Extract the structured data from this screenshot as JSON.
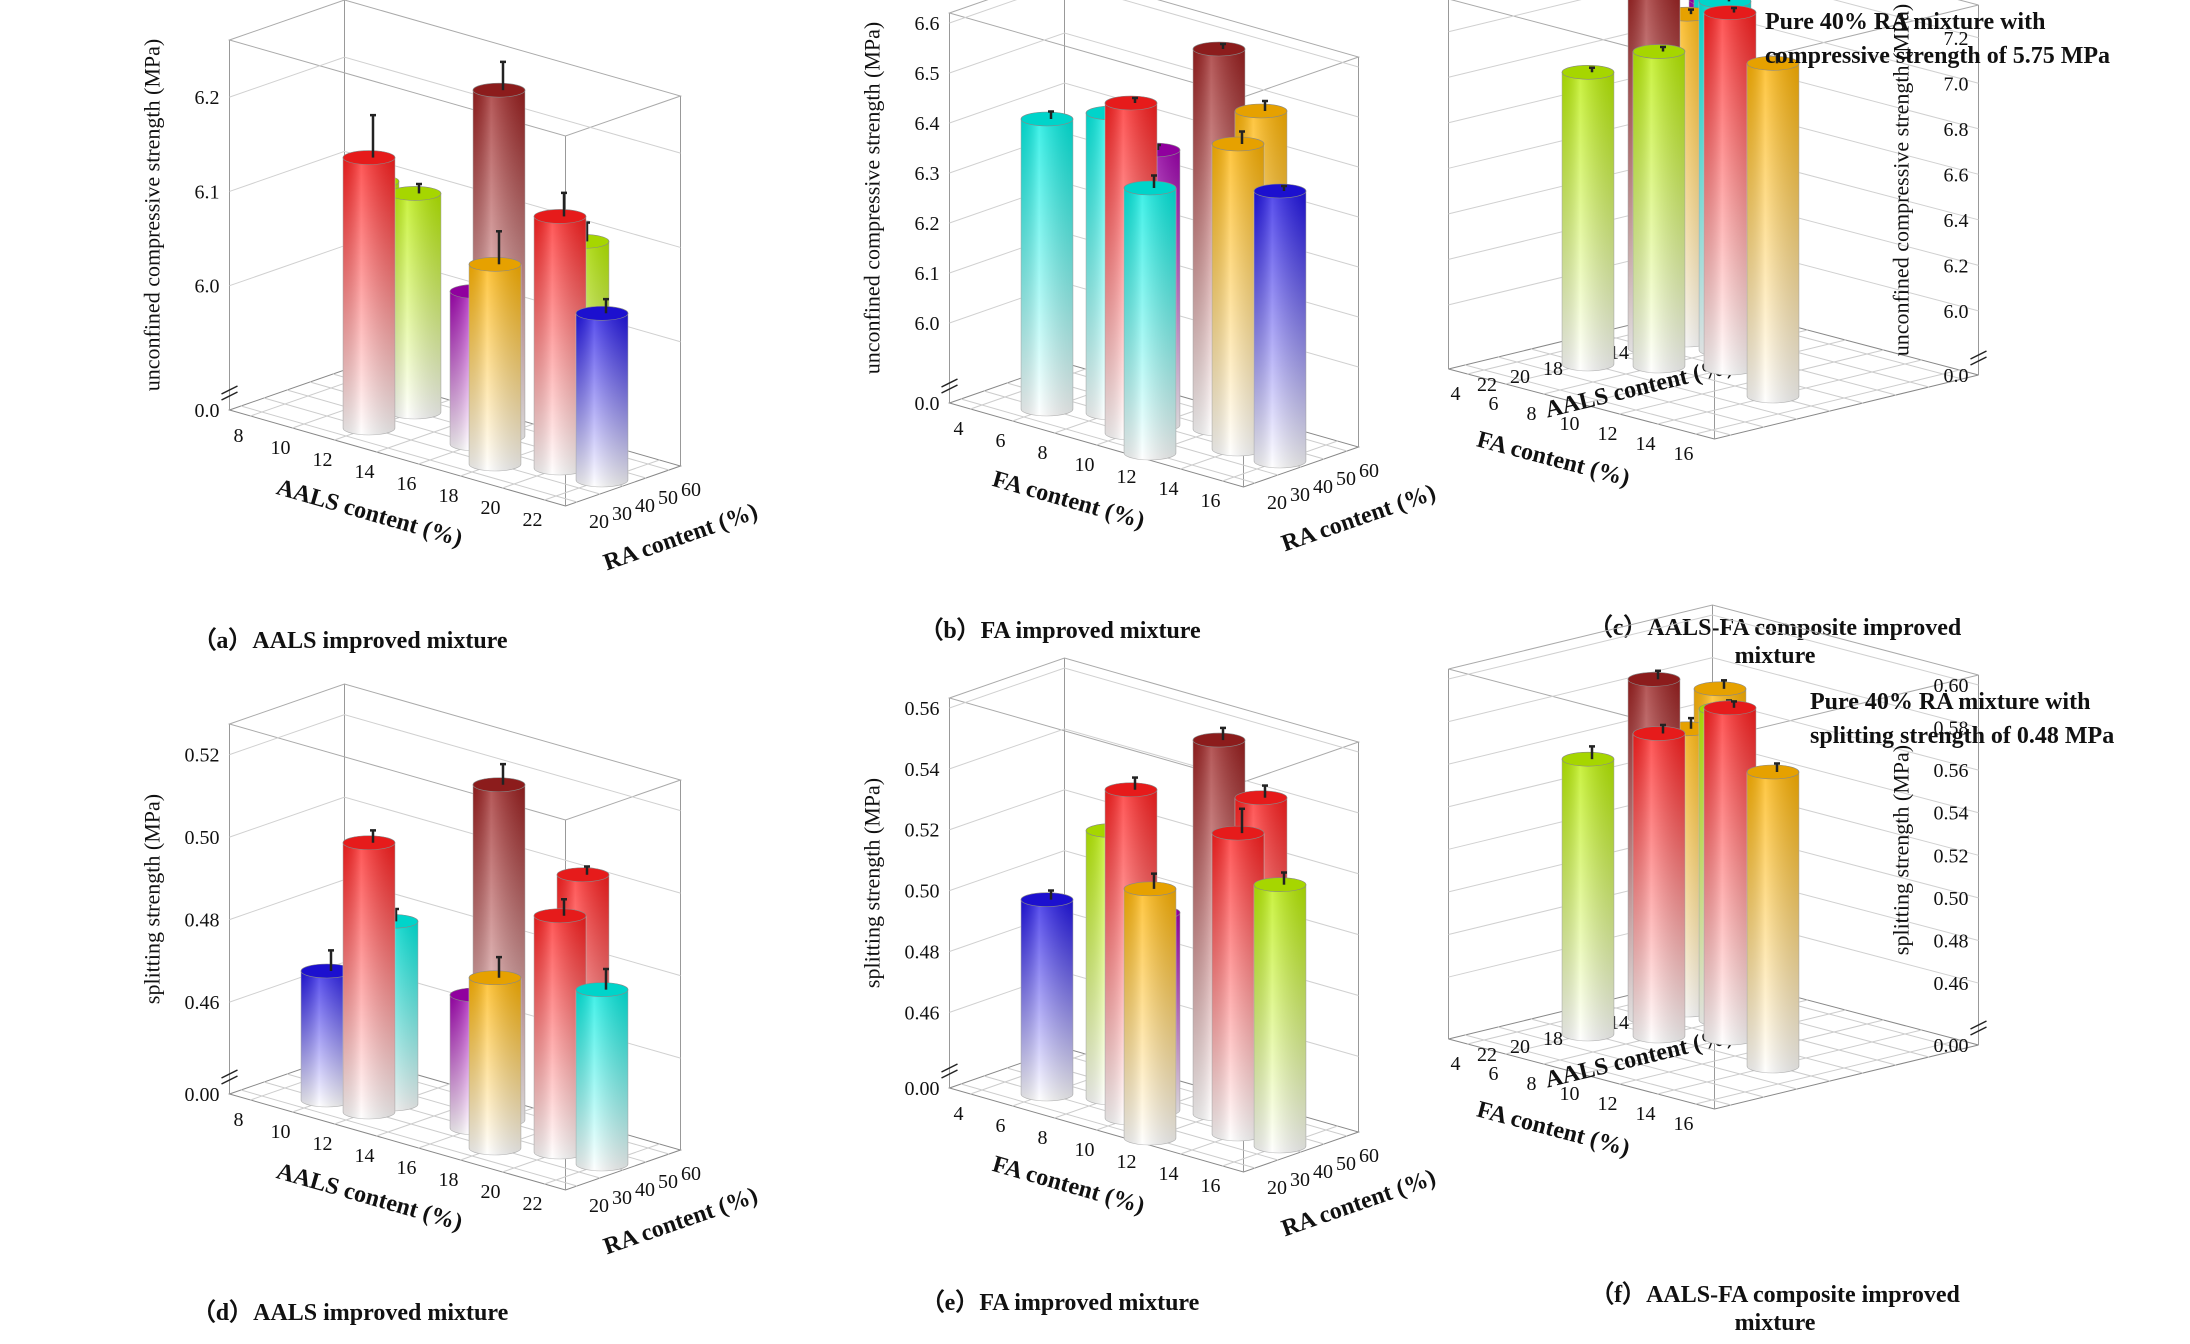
{
  "colors": {
    "dark_red": "#9c1f1f",
    "red": "#ff1e1e",
    "orange": "#ffb300",
    "lime": "#b8ee00",
    "cyan": "#00ece0",
    "purple": "#a000b0",
    "blue": "#1f12e6",
    "bottom": "#ffffff"
  },
  "notes": {
    "c": "Pure 40% RA mixture with compressive strength of 5.75 MPa",
    "f": "Pure 40% RA mixture with splitting strength of 0.48 MPa"
  },
  "chart_data": [
    {
      "id": "a",
      "type": "bar3d",
      "caption": "（a）AALS improved mixture",
      "xlabel": "AALS content (%)",
      "ylabel": "RA content (%)",
      "zlabel": "unconfined compressive strength (MPa)",
      "x_ticks": [
        "8",
        "10",
        "12",
        "14",
        "16",
        "18",
        "20",
        "22"
      ],
      "y_ticks": [
        "20",
        "30",
        "40",
        "50",
        "60"
      ],
      "z_ticks": [
        "0.0",
        "6.0",
        "6.1",
        "6.2"
      ],
      "z_range": [
        5.9,
        6.25
      ],
      "axis_break": true,
      "bars": [
        {
          "x": "10",
          "y": "50",
          "value": 6.1,
          "error": 0.015,
          "color": "lime"
        },
        {
          "x": "12",
          "y": "50",
          "value": 6.1,
          "error": 0.01,
          "color": "lime"
        },
        {
          "x": "12",
          "y": "30",
          "value": 6.155,
          "error": 0.045,
          "color": "red"
        },
        {
          "x": "16",
          "y": "40",
          "value": 6.03,
          "error": 0.01,
          "color": "purple"
        },
        {
          "x": "16",
          "y": "50",
          "value": 6.235,
          "error": 0.03,
          "color": "dark_red"
        },
        {
          "x": "20",
          "y": "50",
          "value": 6.1,
          "error": 0.02,
          "color": "lime"
        },
        {
          "x": "18",
          "y": "30",
          "value": 6.08,
          "error": 0.035,
          "color": "orange"
        },
        {
          "x": "20",
          "y": "40",
          "value": 6.135,
          "error": 0.025,
          "color": "red"
        },
        {
          "x": "22",
          "y": "40",
          "value": 6.045,
          "error": 0.015,
          "color": "blue"
        }
      ]
    },
    {
      "id": "b",
      "type": "bar3d",
      "caption": "（b）FA improved mixture",
      "xlabel": "FA content (%)",
      "ylabel": "RA content (%)",
      "zlabel": "unconfined compressive strength (MPa)",
      "x_ticks": [
        "4",
        "6",
        "8",
        "10",
        "12",
        "14",
        "16"
      ],
      "y_ticks": [
        "20",
        "30",
        "40",
        "50",
        "60"
      ],
      "z_ticks": [
        "0.0",
        "6.0",
        "6.1",
        "6.2",
        "6.3",
        "6.4",
        "6.5",
        "6.6"
      ],
      "z_range": [
        5.9,
        6.6
      ],
      "axis_break": true,
      "bars": [
        {
          "x": "6",
          "y": "30",
          "value": 6.42,
          "error": 0.015,
          "color": "cyan"
        },
        {
          "x": "8",
          "y": "40",
          "value": 6.44,
          "error": 0.01,
          "color": "cyan"
        },
        {
          "x": "10",
          "y": "40",
          "value": 6.39,
          "error": 0.01,
          "color": "purple"
        },
        {
          "x": "10",
          "y": "30",
          "value": 6.5,
          "error": 0.01,
          "color": "red"
        },
        {
          "x": "12",
          "y": "50",
          "value": 6.6,
          "error": 0.01,
          "color": "dark_red"
        },
        {
          "x": "14",
          "y": "50",
          "value": 6.5,
          "error": 0.02,
          "color": "orange"
        },
        {
          "x": "12",
          "y": "20",
          "value": 6.37,
          "error": 0.025,
          "color": "cyan"
        },
        {
          "x": "14",
          "y": "40",
          "value": 6.45,
          "error": 0.025,
          "color": "orange"
        },
        {
          "x": "16",
          "y": "40",
          "value": 6.38,
          "error": 0.01,
          "color": "blue"
        }
      ]
    },
    {
      "id": "c",
      "type": "bar3d",
      "caption": "（c）AALS-FA composite improved mixture",
      "xlabel": "FA content (%)",
      "ylabel": "AALS content (%)",
      "zlabel": "unconfined compressive strength (MPa)",
      "x_ticks": [
        "16",
        "14",
        "12",
        "10",
        "8",
        "6",
        "4"
      ],
      "y_ticks": [
        "22",
        "20",
        "18",
        "16",
        "14",
        "12",
        "10",
        "8"
      ],
      "z_ticks": [
        "0.0",
        "6.0",
        "6.2",
        "6.4",
        "6.6",
        "6.8",
        "7.0",
        "7.2"
      ],
      "z_range": [
        5.85,
        7.3
      ],
      "axis_break": true,
      "bars": [
        {
          "x": "14",
          "y": "16",
          "value": 7.18,
          "error": 0.04,
          "color": "orange"
        },
        {
          "x": "10",
          "y": "14",
          "value": 7.28,
          "error": 0.02,
          "color": "red"
        },
        {
          "x": "8",
          "y": "16",
          "value": 7.1,
          "error": 0.02,
          "color": "lime"
        },
        {
          "x": "8",
          "y": "12",
          "value": 7.25,
          "error": 0.02,
          "color": "cyan"
        },
        {
          "x": "6",
          "y": "14",
          "value": 7.3,
          "error": 0.02,
          "color": "dark_red"
        },
        {
          "x": "6",
          "y": "18",
          "value": 7.0,
          "error": 0.02,
          "color": "lime"
        },
        {
          "x": "6",
          "y": "10",
          "value": 7.2,
          "error": 0.02,
          "color": "cyan"
        },
        {
          "x": "6",
          "y": "12",
          "value": 7.15,
          "error": 0.02,
          "color": "orange"
        },
        {
          "x": "4",
          "y": "8",
          "value": 7.1,
          "error": 0.02,
          "color": "purple"
        }
      ]
    },
    {
      "id": "d",
      "type": "bar3d",
      "caption": "（d）AALS improved mixture",
      "xlabel": "AALS content (%)",
      "ylabel": "RA content (%)",
      "zlabel": "splitting strength (MPa)",
      "x_ticks": [
        "8",
        "10",
        "12",
        "14",
        "16",
        "18",
        "20",
        "22"
      ],
      "y_ticks": [
        "20",
        "30",
        "40",
        "50",
        "60"
      ],
      "z_ticks": [
        "0.00",
        "0.46",
        "0.48",
        "0.50",
        "0.52"
      ],
      "z_range": [
        0.445,
        0.525
      ],
      "axis_break": true,
      "bars": [
        {
          "x": "10",
          "y": "30",
          "value": 0.469,
          "error": 0.005,
          "color": "blue"
        },
        {
          "x": "12",
          "y": "40",
          "value": 0.482,
          "error": 0.003,
          "color": "cyan"
        },
        {
          "x": "12",
          "y": "30",
          "value": 0.503,
          "error": 0.003,
          "color": "red"
        },
        {
          "x": "16",
          "y": "40",
          "value": 0.47,
          "error": 0.003,
          "color": "purple"
        },
        {
          "x": "16",
          "y": "50",
          "value": 0.519,
          "error": 0.005,
          "color": "dark_red"
        },
        {
          "x": "20",
          "y": "50",
          "value": 0.503,
          "error": 0.002,
          "color": "red"
        },
        {
          "x": "18",
          "y": "30",
          "value": 0.479,
          "error": 0.005,
          "color": "orange"
        },
        {
          "x": "20",
          "y": "40",
          "value": 0.495,
          "error": 0.004,
          "color": "red"
        },
        {
          "x": "22",
          "y": "40",
          "value": 0.48,
          "error": 0.005,
          "color": "cyan"
        }
      ]
    },
    {
      "id": "e",
      "type": "bar3d",
      "caption": "（e）FA improved mixture",
      "xlabel": "FA content (%)",
      "ylabel": "RA content (%)",
      "zlabel": "splitting strength (MPa)",
      "x_ticks": [
        "4",
        "6",
        "8",
        "10",
        "12",
        "14",
        "16"
      ],
      "y_ticks": [
        "20",
        "30",
        "40",
        "50",
        "60"
      ],
      "z_ticks": [
        "0.00",
        "0.46",
        "0.48",
        "0.50",
        "0.52",
        "0.54",
        "0.56"
      ],
      "z_range": [
        0.445,
        0.56
      ],
      "axis_break": true,
      "bars": [
        {
          "x": "6",
          "y": "30",
          "value": 0.499,
          "error": 0.003,
          "color": "blue"
        },
        {
          "x": "8",
          "y": "40",
          "value": 0.523,
          "error": 0.003,
          "color": "lime"
        },
        {
          "x": "10",
          "y": "40",
          "value": 0.5,
          "error": 0.003,
          "color": "purple"
        },
        {
          "x": "10",
          "y": "30",
          "value": 0.543,
          "error": 0.004,
          "color": "red"
        },
        {
          "x": "12",
          "y": "50",
          "value": 0.558,
          "error": 0.004,
          "color": "dark_red"
        },
        {
          "x": "14",
          "y": "50",
          "value": 0.543,
          "error": 0.004,
          "color": "red"
        },
        {
          "x": "12",
          "y": "20",
          "value": 0.517,
          "error": 0.005,
          "color": "orange"
        },
        {
          "x": "14",
          "y": "40",
          "value": 0.534,
          "error": 0.008,
          "color": "red"
        },
        {
          "x": "16",
          "y": "40",
          "value": 0.521,
          "error": 0.004,
          "color": "lime"
        }
      ]
    },
    {
      "id": "f",
      "type": "bar3d",
      "caption": "（f）AALS-FA composite improved mixture",
      "xlabel": "FA content (%)",
      "ylabel": "AALS content (%)",
      "zlabel": "splitting strength (MPa)",
      "x_ticks": [
        "16",
        "14",
        "12",
        "10",
        "8",
        "6",
        "4"
      ],
      "y_ticks": [
        "22",
        "20",
        "18",
        "16",
        "14",
        "12",
        "10",
        "8"
      ],
      "z_ticks": [
        "0.00",
        "0.46",
        "0.48",
        "0.50",
        "0.52",
        "0.54",
        "0.56",
        "0.58",
        "0.60"
      ],
      "z_range": [
        0.445,
        0.6
      ],
      "axis_break": true,
      "bars": [
        {
          "x": "14",
          "y": "16",
          "value": 0.569,
          "error": 0.004,
          "color": "orange"
        },
        {
          "x": "10",
          "y": "14",
          "value": 0.586,
          "error": 0.003,
          "color": "red"
        },
        {
          "x": "8",
          "y": "16",
          "value": 0.573,
          "error": 0.004,
          "color": "red"
        },
        {
          "x": "8",
          "y": "12",
          "value": 0.577,
          "error": 0.004,
          "color": "lime"
        },
        {
          "x": "6",
          "y": "14",
          "value": 0.59,
          "error": 0.004,
          "color": "dark_red"
        },
        {
          "x": "6",
          "y": "18",
          "value": 0.56,
          "error": 0.006,
          "color": "lime"
        },
        {
          "x": "6",
          "y": "10",
          "value": 0.578,
          "error": 0.004,
          "color": "orange"
        },
        {
          "x": "6",
          "y": "12",
          "value": 0.563,
          "error": 0.005,
          "color": "orange"
        },
        {
          "x": "4",
          "y": "8",
          "value": 0.54,
          "error": 0.003,
          "color": "purple"
        }
      ]
    }
  ]
}
